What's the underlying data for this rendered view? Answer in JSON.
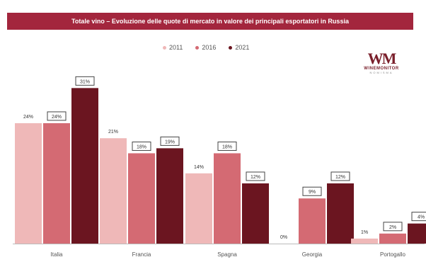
{
  "banner": {
    "text": "Totale vino – Evoluzione delle quote di mercato in valore dei principali esportatori in Russia",
    "color": "#a3263d"
  },
  "logo": {
    "mark": "WM",
    "word": "WINEMONITOR",
    "sub": "NOMISMA"
  },
  "chart_data": {
    "type": "bar",
    "title": "Totale vino – Evoluzione delle quote di mercato in valore dei principali esportatori in Russia",
    "categories": [
      "Italia",
      "Francia",
      "Spagna",
      "Georgia",
      "Portogallo"
    ],
    "series": [
      {
        "name": "2011",
        "color": "#efb8b8",
        "values": [
          24,
          21,
          14,
          0,
          1
        ],
        "labels": [
          "24%",
          "21%",
          "14%",
          "0%",
          "1%"
        ],
        "boxed": false
      },
      {
        "name": "2016",
        "color": "#d46a73",
        "values": [
          24,
          18,
          18,
          9,
          2
        ],
        "labels": [
          "24%",
          "18%",
          "18%",
          "9%",
          "2%"
        ],
        "boxed": true
      },
      {
        "name": "2021",
        "color": "#6b1520",
        "values": [
          31,
          19,
          12,
          12,
          4
        ],
        "labels": [
          "31%",
          "19%",
          "12%",
          "12%",
          "4%"
        ],
        "boxed": true
      }
    ],
    "ylim": [
      0,
      35
    ],
    "xlabel": "",
    "ylabel": "",
    "legend": "top-center",
    "grid": false
  }
}
